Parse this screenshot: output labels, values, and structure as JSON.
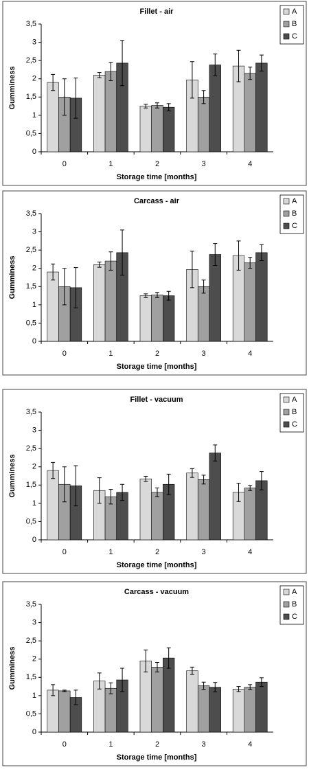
{
  "chart_data": [
    {
      "type": "bar",
      "title": "Fillet - air",
      "x_label": "Storage time [months]",
      "y_label": "Gumminess",
      "categories": [
        "0",
        "1",
        "2",
        "3",
        "4"
      ],
      "series": [
        {
          "name": "A",
          "color": "#d9d9d9",
          "values": [
            1.9,
            2.1,
            1.25,
            1.97,
            2.35
          ],
          "errors": [
            0.22,
            0.07,
            0.05,
            0.5,
            0.43
          ]
        },
        {
          "name": "B",
          "color": "#a0a0a0",
          "values": [
            1.5,
            2.2,
            1.27,
            1.5,
            2.15
          ],
          "errors": [
            0.5,
            0.25,
            0.07,
            0.18,
            0.17
          ]
        },
        {
          "name": "C",
          "color": "#4d4d4d",
          "values": [
            1.47,
            2.43,
            1.22,
            2.38,
            2.43
          ],
          "errors": [
            0.55,
            0.62,
            0.1,
            0.3,
            0.22
          ]
        }
      ],
      "ylim": [
        0,
        3.5
      ],
      "yticks": [
        0,
        {
          "value": 0.5,
          "label": "0,5"
        },
        1,
        {
          "value": 1.5,
          "label": "1,5"
        },
        2,
        {
          "value": 2.5,
          "label": "2,5"
        },
        3,
        {
          "value": 3.5,
          "label": "3,5"
        }
      ],
      "legend": "right"
    },
    {
      "type": "bar",
      "title": "Carcass - air",
      "x_label": "Storage time [months]",
      "y_label": "Gumminess",
      "categories": [
        "0",
        "1",
        "2",
        "3",
        "4"
      ],
      "series": [
        {
          "name": "A",
          "color": "#d9d9d9",
          "values": [
            1.9,
            2.1,
            1.25,
            1.97,
            2.35
          ],
          "errors": [
            0.22,
            0.07,
            0.05,
            0.5,
            0.4
          ]
        },
        {
          "name": "B",
          "color": "#a0a0a0",
          "values": [
            1.5,
            2.2,
            1.27,
            1.5,
            2.15
          ],
          "errors": [
            0.5,
            0.25,
            0.07,
            0.18,
            0.15
          ]
        },
        {
          "name": "C",
          "color": "#4d4d4d",
          "values": [
            1.47,
            2.43,
            1.25,
            2.38,
            2.43
          ],
          "errors": [
            0.55,
            0.62,
            0.12,
            0.3,
            0.22
          ]
        }
      ],
      "ylim": [
        0,
        3.5
      ],
      "yticks": [
        0,
        {
          "value": 0.5,
          "label": "0,5"
        },
        1,
        {
          "value": 1.5,
          "label": "1,5"
        },
        2,
        {
          "value": 2.5,
          "label": "2,5"
        },
        3,
        {
          "value": 3.5,
          "label": "3,5"
        }
      ],
      "legend": "right"
    },
    {
      "type": "bar",
      "title": "Fillet - vacuum",
      "x_label": "Storage time [months]",
      "y_label": "Gumminess",
      "categories": [
        "0",
        "1",
        "2",
        "3",
        "4"
      ],
      "series": [
        {
          "name": "A",
          "color": "#d9d9d9",
          "values": [
            1.9,
            1.35,
            1.67,
            1.83,
            1.3
          ],
          "errors": [
            0.22,
            0.35,
            0.07,
            0.12,
            0.25
          ]
        },
        {
          "name": "B",
          "color": "#a0a0a0",
          "values": [
            1.52,
            1.18,
            1.3,
            1.65,
            1.42
          ],
          "errors": [
            0.48,
            0.2,
            0.12,
            0.12,
            0.07
          ]
        },
        {
          "name": "C",
          "color": "#4d4d4d",
          "values": [
            1.48,
            1.3,
            1.52,
            2.38,
            1.62
          ],
          "errors": [
            0.55,
            0.22,
            0.28,
            0.22,
            0.25
          ]
        }
      ],
      "ylim": [
        0,
        3.5
      ],
      "yticks": [
        0,
        {
          "value": 0.5,
          "label": "0,5"
        },
        1,
        {
          "value": 1.5,
          "label": "1,5"
        },
        2,
        {
          "value": 2.5,
          "label": "2,5"
        },
        3,
        {
          "value": 3.5,
          "label": "3,5"
        }
      ],
      "legend": "right"
    },
    {
      "type": "bar",
      "title": "Carcass - vacuum",
      "x_label": "Storage time [months]",
      "y_label": "Gumminess",
      "categories": [
        "0",
        "1",
        "2",
        "3",
        "4"
      ],
      "series": [
        {
          "name": "A",
          "color": "#d9d9d9",
          "values": [
            1.15,
            1.4,
            1.95,
            1.68,
            1.18
          ],
          "errors": [
            0.15,
            0.22,
            0.3,
            0.1,
            0.07
          ]
        },
        {
          "name": "B",
          "color": "#a0a0a0",
          "values": [
            1.13,
            1.2,
            1.78,
            1.27,
            1.23
          ],
          "errors": [
            0.02,
            0.15,
            0.13,
            0.1,
            0.07
          ]
        },
        {
          "name": "C",
          "color": "#4d4d4d",
          "values": [
            0.95,
            1.43,
            2.03,
            1.23,
            1.37
          ],
          "errors": [
            0.2,
            0.32,
            0.28,
            0.13,
            0.12
          ]
        }
      ],
      "ylim": [
        0,
        3.5
      ],
      "yticks": [
        0,
        {
          "value": 0.5,
          "label": "0,5"
        },
        1,
        {
          "value": 1.5,
          "label": "1,5"
        },
        2,
        {
          "value": 2.5,
          "label": "2,5"
        },
        3,
        {
          "value": 3.5,
          "label": "3,5"
        }
      ],
      "legend": "right"
    }
  ]
}
